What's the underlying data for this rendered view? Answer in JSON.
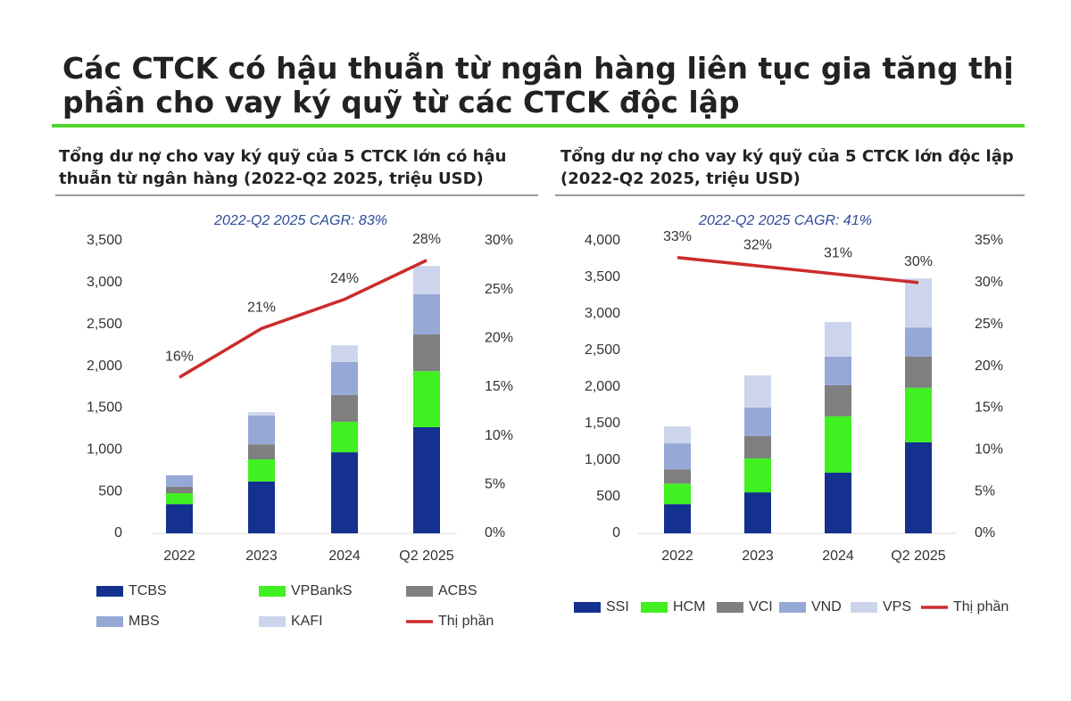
{
  "title": "Các CTCK có hậu thuẫn từ ngân hàng liên tục gia tăng thị phần cho vay ký quỹ từ các CTCK độc lập",
  "chart_data": [
    {
      "type": "bar",
      "stacked": true,
      "title": "Tổng dư nợ cho vay ký quỹ của 5 CTCK lớn có hậu thuẫn từ ngân hàng (2022-Q2 2025, triệu USD)",
      "annotation": "2022-Q2 2025 CAGR: 83%",
      "categories": [
        "2022",
        "2023",
        "2024",
        "Q2 2025"
      ],
      "series": [
        {
          "name": "TCBS",
          "color": "#14318f",
          "values": [
            350,
            620,
            970,
            1270
          ]
        },
        {
          "name": "VPBankS",
          "color": "#40f020",
          "values": [
            130,
            265,
            365,
            670
          ]
        },
        {
          "name": "ACBS",
          "color": "#7f7f7f",
          "values": [
            75,
            180,
            320,
            440
          ]
        },
        {
          "name": "MBS",
          "color": "#96a8d6",
          "values": [
            140,
            345,
            395,
            480
          ]
        },
        {
          "name": "KAFI",
          "color": "#ccd5ec",
          "values": [
            0,
            40,
            200,
            340
          ]
        },
        {
          "name": "Thị phần",
          "type": "line",
          "axis": "y2",
          "color": "#cc2b2b",
          "values": [
            16,
            21,
            24,
            28
          ],
          "value_labels": [
            "16%",
            "21%",
            "24%",
            "28%"
          ]
        }
      ],
      "ylim": [
        0,
        3500
      ],
      "yticks": [
        0,
        500,
        {
          "value": 1000,
          "label": "1,000"
        },
        {
          "value": 1500,
          "label": "1,500"
        },
        {
          "value": 2000,
          "label": "2,000"
        },
        {
          "value": 2500,
          "label": "2,500"
        },
        {
          "value": 3000,
          "label": "3,000"
        },
        {
          "value": 3500,
          "label": "3,500"
        }
      ],
      "y2lim": [
        0,
        30
      ],
      "y2ticks": [
        {
          "value": 0,
          "label": "0%"
        },
        {
          "value": 5,
          "label": "5%"
        },
        {
          "value": 10,
          "label": "10%"
        },
        {
          "value": 15,
          "label": "15%"
        },
        {
          "value": 20,
          "label": "20%"
        },
        {
          "value": 25,
          "label": "25%"
        },
        {
          "value": 30,
          "label": "30%"
        }
      ],
      "legend": "bottom"
    },
    {
      "type": "bar",
      "stacked": true,
      "title": "Tổng dư nợ cho vay ký quỹ của 5 CTCK lớn độc lập (2022-Q2 2025, triệu USD)",
      "annotation": "2022-Q2 2025 CAGR: 41%",
      "categories": [
        "2022",
        "2023",
        "2024",
        "Q2 2025"
      ],
      "series": [
        {
          "name": "SSI",
          "color": "#14318f",
          "values": [
            400,
            560,
            830,
            1245
          ]
        },
        {
          "name": "HCM",
          "color": "#40f020",
          "values": [
            280,
            465,
            770,
            745
          ]
        },
        {
          "name": "VCI",
          "color": "#7f7f7f",
          "values": [
            195,
            305,
            425,
            425
          ]
        },
        {
          "name": "VND",
          "color": "#96a8d6",
          "values": [
            355,
            390,
            390,
            400
          ]
        },
        {
          "name": "VPS",
          "color": "#ccd5ec",
          "values": [
            230,
            440,
            475,
            670
          ]
        },
        {
          "name": "Thị phần",
          "type": "line",
          "axis": "y2",
          "color": "#cc2b2b",
          "values": [
            33,
            32,
            31,
            30
          ],
          "value_labels": [
            "33%",
            "32%",
            "31%",
            "30%"
          ]
        }
      ],
      "ylim": [
        0,
        4000
      ],
      "yticks": [
        0,
        500,
        {
          "value": 1000,
          "label": "1,000"
        },
        {
          "value": 1500,
          "label": "1,500"
        },
        {
          "value": 2000,
          "label": "2,000"
        },
        {
          "value": 2500,
          "label": "2,500"
        },
        {
          "value": 3000,
          "label": "3,000"
        },
        {
          "value": 3500,
          "label": "3,500"
        },
        {
          "value": 4000,
          "label": "4,000"
        }
      ],
      "y2lim": [
        0,
        35
      ],
      "y2ticks": [
        {
          "value": 0,
          "label": "0%"
        },
        {
          "value": 5,
          "label": "5%"
        },
        {
          "value": 10,
          "label": "10%"
        },
        {
          "value": 15,
          "label": "15%"
        },
        {
          "value": 20,
          "label": "20%"
        },
        {
          "value": 25,
          "label": "25%"
        },
        {
          "value": 30,
          "label": "30%"
        },
        {
          "value": 35,
          "label": "35%"
        }
      ],
      "legend": "bottom"
    }
  ]
}
